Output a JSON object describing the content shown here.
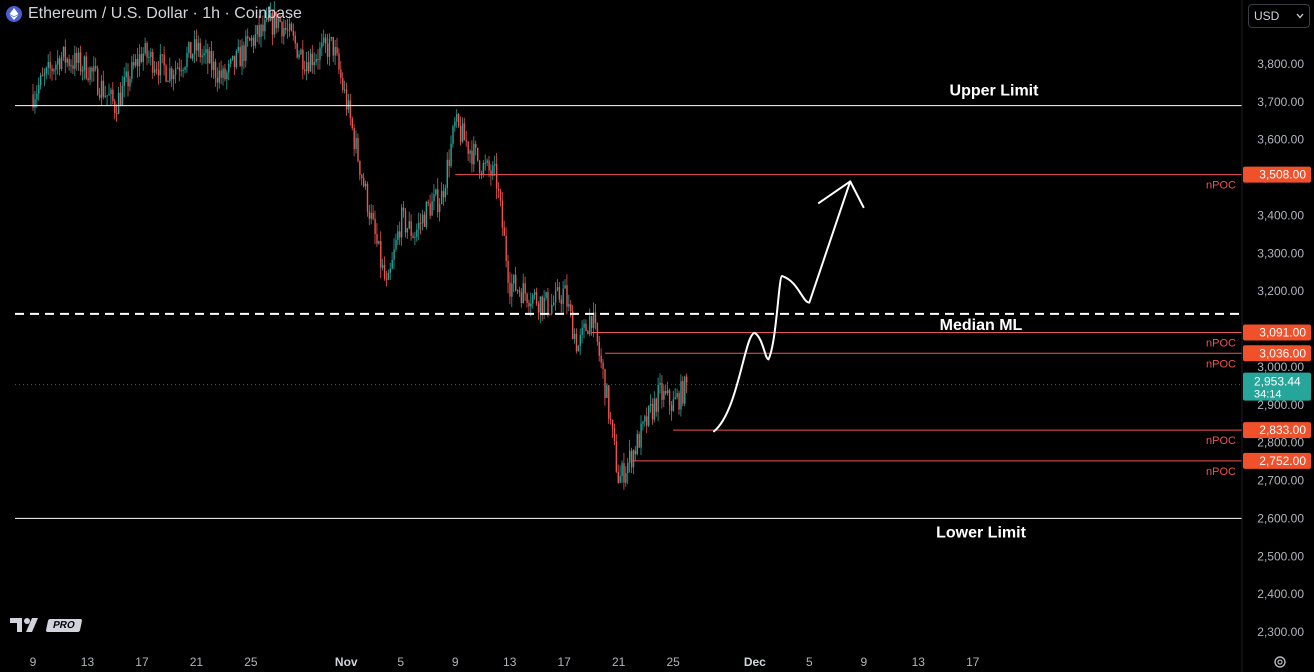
{
  "header": {
    "symbol_title": "Ethereum / U.S. Dollar · 1h · Coinbase",
    "currency": "USD",
    "icon": "ethereum-icon"
  },
  "footer": {
    "logo_text": "PRO",
    "settings_icon": "gear-icon"
  },
  "colors": {
    "background": "#000000",
    "up_candle": "#26a69a",
    "down_candle": "#ef5350",
    "level_line": "#ef5350",
    "label_orange": "#f0502a",
    "current_price_bg": "#26a69a"
  },
  "chart_data": {
    "type": "candlestick",
    "title": "Ethereum / U.S. Dollar · 1h · Coinbase",
    "ylim": [
      2260,
      3900
    ],
    "y_ticks": [
      "3,800.00",
      "3,700.00",
      "3,600.00",
      "3,500.00",
      "3,400.00",
      "3,300.00",
      "3,200.00",
      "3,100.00",
      "3,000.00",
      "2,900.00",
      "2,800.00",
      "2,700.00",
      "2,600.00",
      "2,500.00",
      "2,400.00",
      "2,300.00"
    ],
    "x_ticks": [
      "9",
      "13",
      "17",
      "21",
      "25",
      "Nov",
      "5",
      "9",
      "13",
      "17",
      "21",
      "25",
      "Dec",
      "5",
      "9",
      "13",
      "17"
    ],
    "price_path": [
      [
        "Oct 9",
        3720
      ],
      [
        "Oct 11",
        3820
      ],
      [
        "Oct 13",
        3790
      ],
      [
        "Oct 15",
        3690
      ],
      [
        "Oct 17",
        3830
      ],
      [
        "Oct 19",
        3780
      ],
      [
        "Oct 21",
        3840
      ],
      [
        "Oct 23",
        3760
      ],
      [
        "Oct 25",
        3860
      ],
      [
        "Oct 27",
        3920
      ],
      [
        "Oct 29",
        3810
      ],
      [
        "Oct 31",
        3850
      ],
      [
        "Nov 1",
        3700
      ],
      [
        "Nov 2",
        3530
      ],
      [
        "Nov 3",
        3360
      ],
      [
        "Nov 4",
        3200
      ],
      [
        "Nov 5",
        3390
      ],
      [
        "Nov 6",
        3350
      ],
      [
        "Nov 7",
        3420
      ],
      [
        "Nov 8",
        3450
      ],
      [
        "Nov 9",
        3640
      ],
      [
        "Nov 10",
        3580
      ],
      [
        "Nov 11",
        3530
      ],
      [
        "Nov 12",
        3500
      ],
      [
        "Nov 13",
        3220
      ],
      [
        "Nov 14",
        3200
      ],
      [
        "Nov 15",
        3180
      ],
      [
        "Nov 16",
        3160
      ],
      [
        "Nov 17",
        3200
      ],
      [
        "Nov 18",
        3050
      ],
      [
        "Nov 19",
        3140
      ],
      [
        "Nov 20",
        2950
      ],
      [
        "Nov 21",
        2700
      ],
      [
        "Nov 22",
        2770
      ],
      [
        "Nov 23",
        2850
      ],
      [
        "Nov 24",
        2930
      ],
      [
        "Nov 25",
        2900
      ],
      [
        "Nov 26",
        2950
      ]
    ],
    "current_price": "2,953.44",
    "countdown": "34:14",
    "horizontal_levels": [
      {
        "name": "Upper Limit",
        "price": 3690,
        "style": "solid-white"
      },
      {
        "name": "Median ML",
        "price": 3140,
        "style": "dashed-white"
      },
      {
        "name": "Lower Limit",
        "price": 2600,
        "style": "solid-white"
      }
    ],
    "npoc_levels": [
      {
        "label": "nPOC",
        "price_label": "3,508.00",
        "price": 3508,
        "start": "Nov 9"
      },
      {
        "label": "nPOC",
        "price_label": "3,091.00",
        "price": 3091,
        "start": "Nov 19"
      },
      {
        "label": "nPOC",
        "price_label": "3,036.00",
        "price": 3036,
        "start": "Nov 20"
      },
      {
        "label": "nPOC",
        "price_label": "2,833.00",
        "price": 2833,
        "start": "Nov 25"
      },
      {
        "label": "nPOC",
        "price_label": "2,752.00",
        "price": 2752,
        "start": "Nov 22"
      }
    ],
    "projection_path": [
      [
        "Nov 28",
        2830
      ],
      [
        "Dec 1",
        3090
      ],
      [
        "Dec 2",
        3020
      ],
      [
        "Dec 3",
        3240
      ],
      [
        "Dec 5",
        3170
      ],
      [
        "Dec 8",
        3490
      ],
      [
        "Dec 9",
        3420
      ]
    ]
  }
}
